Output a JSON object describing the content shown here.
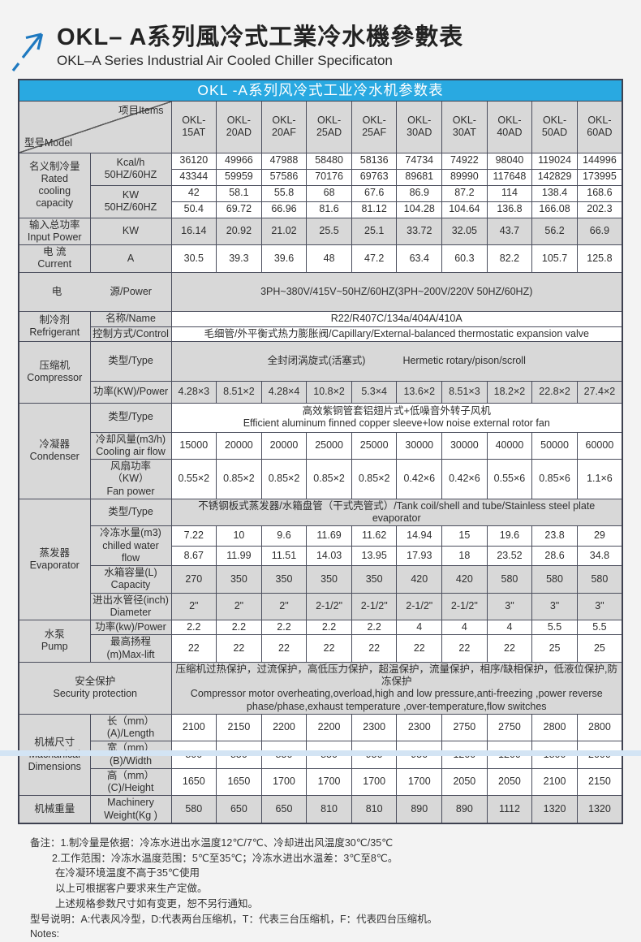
{
  "header": {
    "title_zh": "OKL– A系列風冷式工業冷水機參數表",
    "title_en": "OKL–A Series Industrial Air Cooled Chiller Specificaton"
  },
  "table": {
    "banner": "OKL -A系列风冷式工业冷水机参数表",
    "corner_model": "型号Model",
    "corner_items": "项目Items",
    "models": [
      "OKL-\n15AT",
      "OKL-\n20AD",
      "OKL-\n20AF",
      "OKL-\n25AD",
      "OKL-\n25AF",
      "OKL-\n30AD",
      "OKL-\n30AT",
      "OKL-\n40AD",
      "OKL-\n50AD",
      "OKL-\n60AD"
    ],
    "rated": {
      "label": "名义制冷量\nRated\ncooling\ncapacity",
      "kcal_label": "Kcal/h\n50HZ/60HZ",
      "kcal_50": [
        "36120",
        "49966",
        "47988",
        "58480",
        "58136",
        "74734",
        "74922",
        "98040",
        "119024",
        "144996"
      ],
      "kcal_60": [
        "43344",
        "59959",
        "57586",
        "70176",
        "69763",
        "89681",
        "89990",
        "117648",
        "142829",
        "173995"
      ],
      "kw_label": "KW\n50HZ/60HZ",
      "kw_50": [
        "42",
        "58.1",
        "55.8",
        "68",
        "67.6",
        "86.9",
        "87.2",
        "114",
        "138.4",
        "168.6"
      ],
      "kw_60": [
        "50.4",
        "69.72",
        "66.96",
        "81.6",
        "81.12",
        "104.28",
        "104.64",
        "136.8",
        "166.08",
        "202.3"
      ]
    },
    "input_power": {
      "label": "输入总功率\nInput Power",
      "unit": "KW",
      "values": [
        "16.14",
        "20.92",
        "21.02",
        "25.5",
        "25.1",
        "33.72",
        "32.05",
        "43.7",
        "56.2",
        "66.9"
      ]
    },
    "current": {
      "label": "电 流\nCurrent",
      "unit": "A",
      "values": [
        "30.5",
        "39.3",
        "39.6",
        "48",
        "47.2",
        "63.4",
        "60.3",
        "82.2",
        "105.7",
        "125.8"
      ]
    },
    "power_supply": {
      "label_left": "电",
      "label_right": "源/Power",
      "value": "3PH~380V/415V~50HZ/60HZ(3PH~200V/220V  50HZ/60HZ)"
    },
    "refrigerant": {
      "label": "制冷剂\nRefrigerant",
      "name_label": "名称/Name",
      "name_value": "R22/R407C/134a/404A/410A",
      "control_label": "控制方式/Control",
      "control_value": "毛细管/外平衡式热力膨胀阀/Capillary/External-balanced thermostatic expansion valve"
    },
    "compressor": {
      "label": "压缩机\nCompressor",
      "type_label": "类型/Type",
      "type_value_zh": "全封闭涡旋式(活塞式)",
      "type_value_en": "Hermetic rotary/pison/scroll",
      "power_label": "功率(KW)/Power",
      "power_values": [
        "4.28×3",
        "8.51×2",
        "4.28×4",
        "10.8×2",
        "5.3×4",
        "13.6×2",
        "8.51×3",
        "18.2×2",
        "22.8×2",
        "27.4×2"
      ]
    },
    "condenser": {
      "label": "冷凝器\nCondenser",
      "type_label": "类型/Type",
      "type_value": "高效紫铜管套铝翅片式+低噪音外转子风机\nEfficient aluminum finned copper sleeve+low noise external rotor fan",
      "airflow_label": "冷却风量(m3/h)\nCooling air flow",
      "airflow_values": [
        "15000",
        "20000",
        "20000",
        "25000",
        "25000",
        "30000",
        "30000",
        "40000",
        "50000",
        "60000"
      ],
      "fan_label": "风扇功率（KW）\nFan power",
      "fan_values": [
        "0.55×2",
        "0.85×2",
        "0.85×2",
        "0.85×2",
        "0.85×2",
        "0.42×6",
        "0.42×6",
        "0.55×6",
        "0.85×6",
        "1.1×6"
      ]
    },
    "evaporator": {
      "label": "蒸发器\nEvaporator",
      "type_label": "类型/Type",
      "type_value": "不锈钢板式蒸发器/水箱盘管（干式壳管式）/Tank coil/shell and tube/Stainless steel plate evaporator",
      "water_label": "冷冻水量(m3)\nchilled water flow",
      "water_50": [
        "7.22",
        "10",
        "9.6",
        "11.69",
        "11.62",
        "14.94",
        "15",
        "19.6",
        "23.8",
        "29"
      ],
      "water_60": [
        "8.67",
        "11.99",
        "11.51",
        "14.03",
        "13.95",
        "17.93",
        "18",
        "23.52",
        "28.6",
        "34.8"
      ],
      "capacity_label": "水箱容量(L)\nCapacity",
      "capacity_values": [
        "270",
        "350",
        "350",
        "350",
        "350",
        "420",
        "420",
        "580",
        "580",
        "580"
      ],
      "diameter_label": "进出水管径(inch)\nDiameter",
      "diameter_values": [
        "2\"",
        "2\"",
        "2\"",
        "2-1/2\"",
        "2-1/2\"",
        "2-1/2\"",
        "2-1/2\"",
        "3\"",
        "3\"",
        "3\""
      ]
    },
    "pump": {
      "label": "水泵\nPump",
      "power_label": "功率(kw)/Power",
      "power_values": [
        "2.2",
        "2.2",
        "2.2",
        "2.2",
        "2.2",
        "4",
        "4",
        "4",
        "5.5",
        "5.5"
      ],
      "lift_label": "最高扬程(m)Max-lift",
      "lift_values": [
        "22",
        "22",
        "22",
        "22",
        "22",
        "22",
        "22",
        "22",
        "25",
        "25"
      ]
    },
    "security": {
      "label": "安全保护\nSecurity protection",
      "value": "压缩机过热保护，过流保护，高低压力保护，超温保护，流量保护，相序/缺相保护，低液位保护,防冻保护\nCompressor motor overheating,overload,high and low pressure,anti-freezing ,power reverse\nphase/phase,exhaust temperature ,over-temperature,flow switches"
    },
    "dimensions": {
      "label": "机械尺寸\nMachanical\nDimensions",
      "length_label": "长（mm）(A)/Length",
      "length_values": [
        "2100",
        "2150",
        "2200",
        "2200",
        "2300",
        "2300",
        "2750",
        "2750",
        "2800",
        "2800"
      ],
      "width_label": "宽（mm）(B)/Width",
      "width_values": [
        "800",
        "850",
        "850",
        "850",
        "950",
        "950",
        "1200",
        "1200",
        "1800",
        "2000"
      ],
      "height_label": "高（mm）(C)/Height",
      "height_values": [
        "1650",
        "1650",
        "1700",
        "1700",
        "1700",
        "1700",
        "2050",
        "2050",
        "2100",
        "2150"
      ]
    },
    "weight": {
      "label": "机械重量",
      "sub_label": "Machinery\nWeight(Kg )",
      "values": [
        "580",
        "650",
        "650",
        "810",
        "810",
        "890",
        "890",
        "1112",
        "1320",
        "1320"
      ]
    }
  },
  "notes": {
    "lines": [
      "备注：1.制冷量是依据：冷冻水进出水温度12℃/7℃、冷却进出风温度30℃/35℃",
      "2.工作范围：冷冻水温度范围：5℃至35℃；冷冻水进出水温差：3℃至8℃。",
      "在冷凝环境温度不高于35℃使用",
      "以上可根据客户要求来生产定做。",
      "上述规格参数尺寸如有变更，恕不另行通知。",
      "型号说明：A:代表风冷型，D:代表两台压缩机，T：代表三台压缩机，F：代表四台压缩机。",
      "Notes:"
    ]
  },
  "colors": {
    "banner_blue": "#29a9e1",
    "cell_gray": "#d8d8d8",
    "border": "#4a4d5c",
    "logo_blue": "#1e79c0",
    "bottom_bar": "#d3e4f4"
  }
}
